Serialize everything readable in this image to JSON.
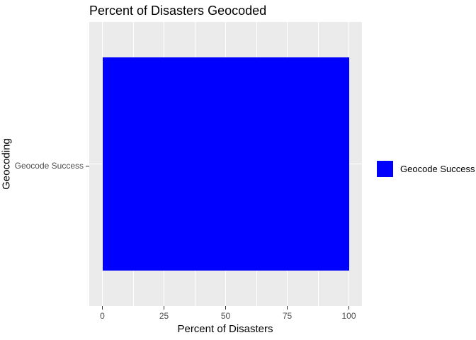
{
  "figure": {
    "background": "#FFFFFF",
    "panel_background": "#EBEBEB",
    "grid_color": "#FFFFFF",
    "axis_text_color": "#4D4D4D",
    "tick_mark_color": "#333333",
    "text_color": "#000000"
  },
  "chart_data": {
    "type": "bar",
    "orientation": "horizontal",
    "title": "Percent of Disasters Geocoded",
    "xlabel": "Percent of Disasters",
    "ylabel": "Geocoding",
    "categories": [
      "Geocode Success"
    ],
    "values": [
      100
    ],
    "bar_color": "#0000FF",
    "xlim": [
      0,
      100
    ],
    "x_ticks": [
      0,
      25,
      50,
      75,
      100
    ],
    "x_minor_ticks": [
      12.5,
      37.5,
      62.5,
      87.5
    ],
    "grid": true,
    "legend": {
      "position": "right",
      "title": "",
      "entries": [
        {
          "label": "Geocode Success",
          "color": "#0000FF"
        }
      ]
    }
  }
}
